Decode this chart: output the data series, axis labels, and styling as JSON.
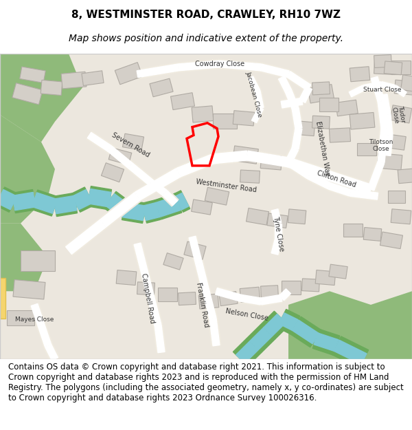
{
  "title_line1": "8, WESTMINSTER ROAD, CRAWLEY, RH10 7WZ",
  "title_line2": "Map shows position and indicative extent of the property.",
  "footer_text": "Contains OS data © Crown copyright and database right 2021. This information is subject to Crown copyright and database rights 2023 and is reproduced with the permission of HM Land Registry. The polygons (including the associated geometry, namely x, y co-ordinates) are subject to Crown copyright and database rights 2023 Ordnance Survey 100026316.",
  "title_fontsize": 11,
  "subtitle_fontsize": 10,
  "footer_fontsize": 8.5,
  "title_bg": "#ffffff",
  "map_bg": "#ece7de",
  "building_color": "#d4cfc8",
  "building_edge": "#b0aba4",
  "green_color": "#8fba7a",
  "water_color": "#7ec8d4",
  "river_green": "#6aaa5a",
  "plot_color_edge": "#ff0000",
  "plot_linewidth": 2.5,
  "road_fill": "#ffffff",
  "road_border": "#f0ebe0",
  "yellow_road": "#f5d56e",
  "label_color": "#333333",
  "label_fontsize": 7,
  "label_fontsize_small": 6.5
}
